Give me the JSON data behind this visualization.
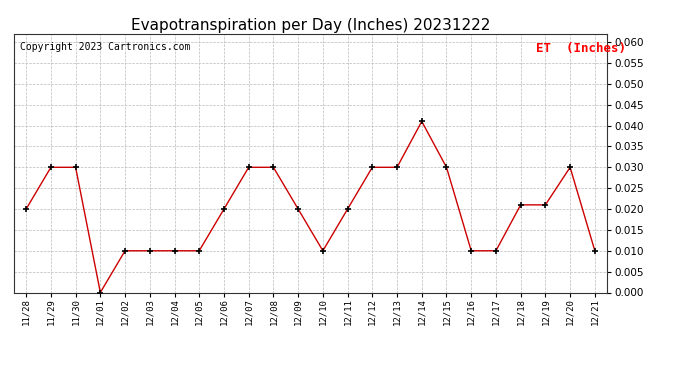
{
  "title": "Evapotranspiration per Day (Inches) 20231222",
  "copyright": "Copyright 2023 Cartronics.com",
  "legend_label": "ET  (Inches)",
  "x_labels": [
    "11/28",
    "11/29",
    "11/30",
    "12/01",
    "12/02",
    "12/03",
    "12/04",
    "12/05",
    "12/06",
    "12/07",
    "12/08",
    "12/09",
    "12/10",
    "12/11",
    "12/12",
    "12/13",
    "12/14",
    "12/15",
    "12/16",
    "12/17",
    "12/18",
    "12/19",
    "12/20",
    "12/21"
  ],
  "et_values": [
    0.02,
    0.03,
    0.03,
    0.0,
    0.01,
    0.01,
    0.01,
    0.01,
    0.02,
    0.03,
    0.03,
    0.02,
    0.01,
    0.02,
    0.03,
    0.03,
    0.041,
    0.03,
    0.01,
    0.01,
    0.021,
    0.021,
    0.03,
    0.01
  ],
  "line_color": "#cc0000",
  "marker_color": "#000000",
  "marker_style": "+",
  "ylim": [
    0.0,
    0.062
  ],
  "yticks": [
    0.0,
    0.005,
    0.01,
    0.015,
    0.02,
    0.025,
    0.03,
    0.035,
    0.04,
    0.045,
    0.05,
    0.055,
    0.06
  ],
  "background_color": "#ffffff",
  "grid_color": "#bbbbbb",
  "title_fontsize": 11,
  "legend_fontsize": 9,
  "copyright_fontsize": 7
}
